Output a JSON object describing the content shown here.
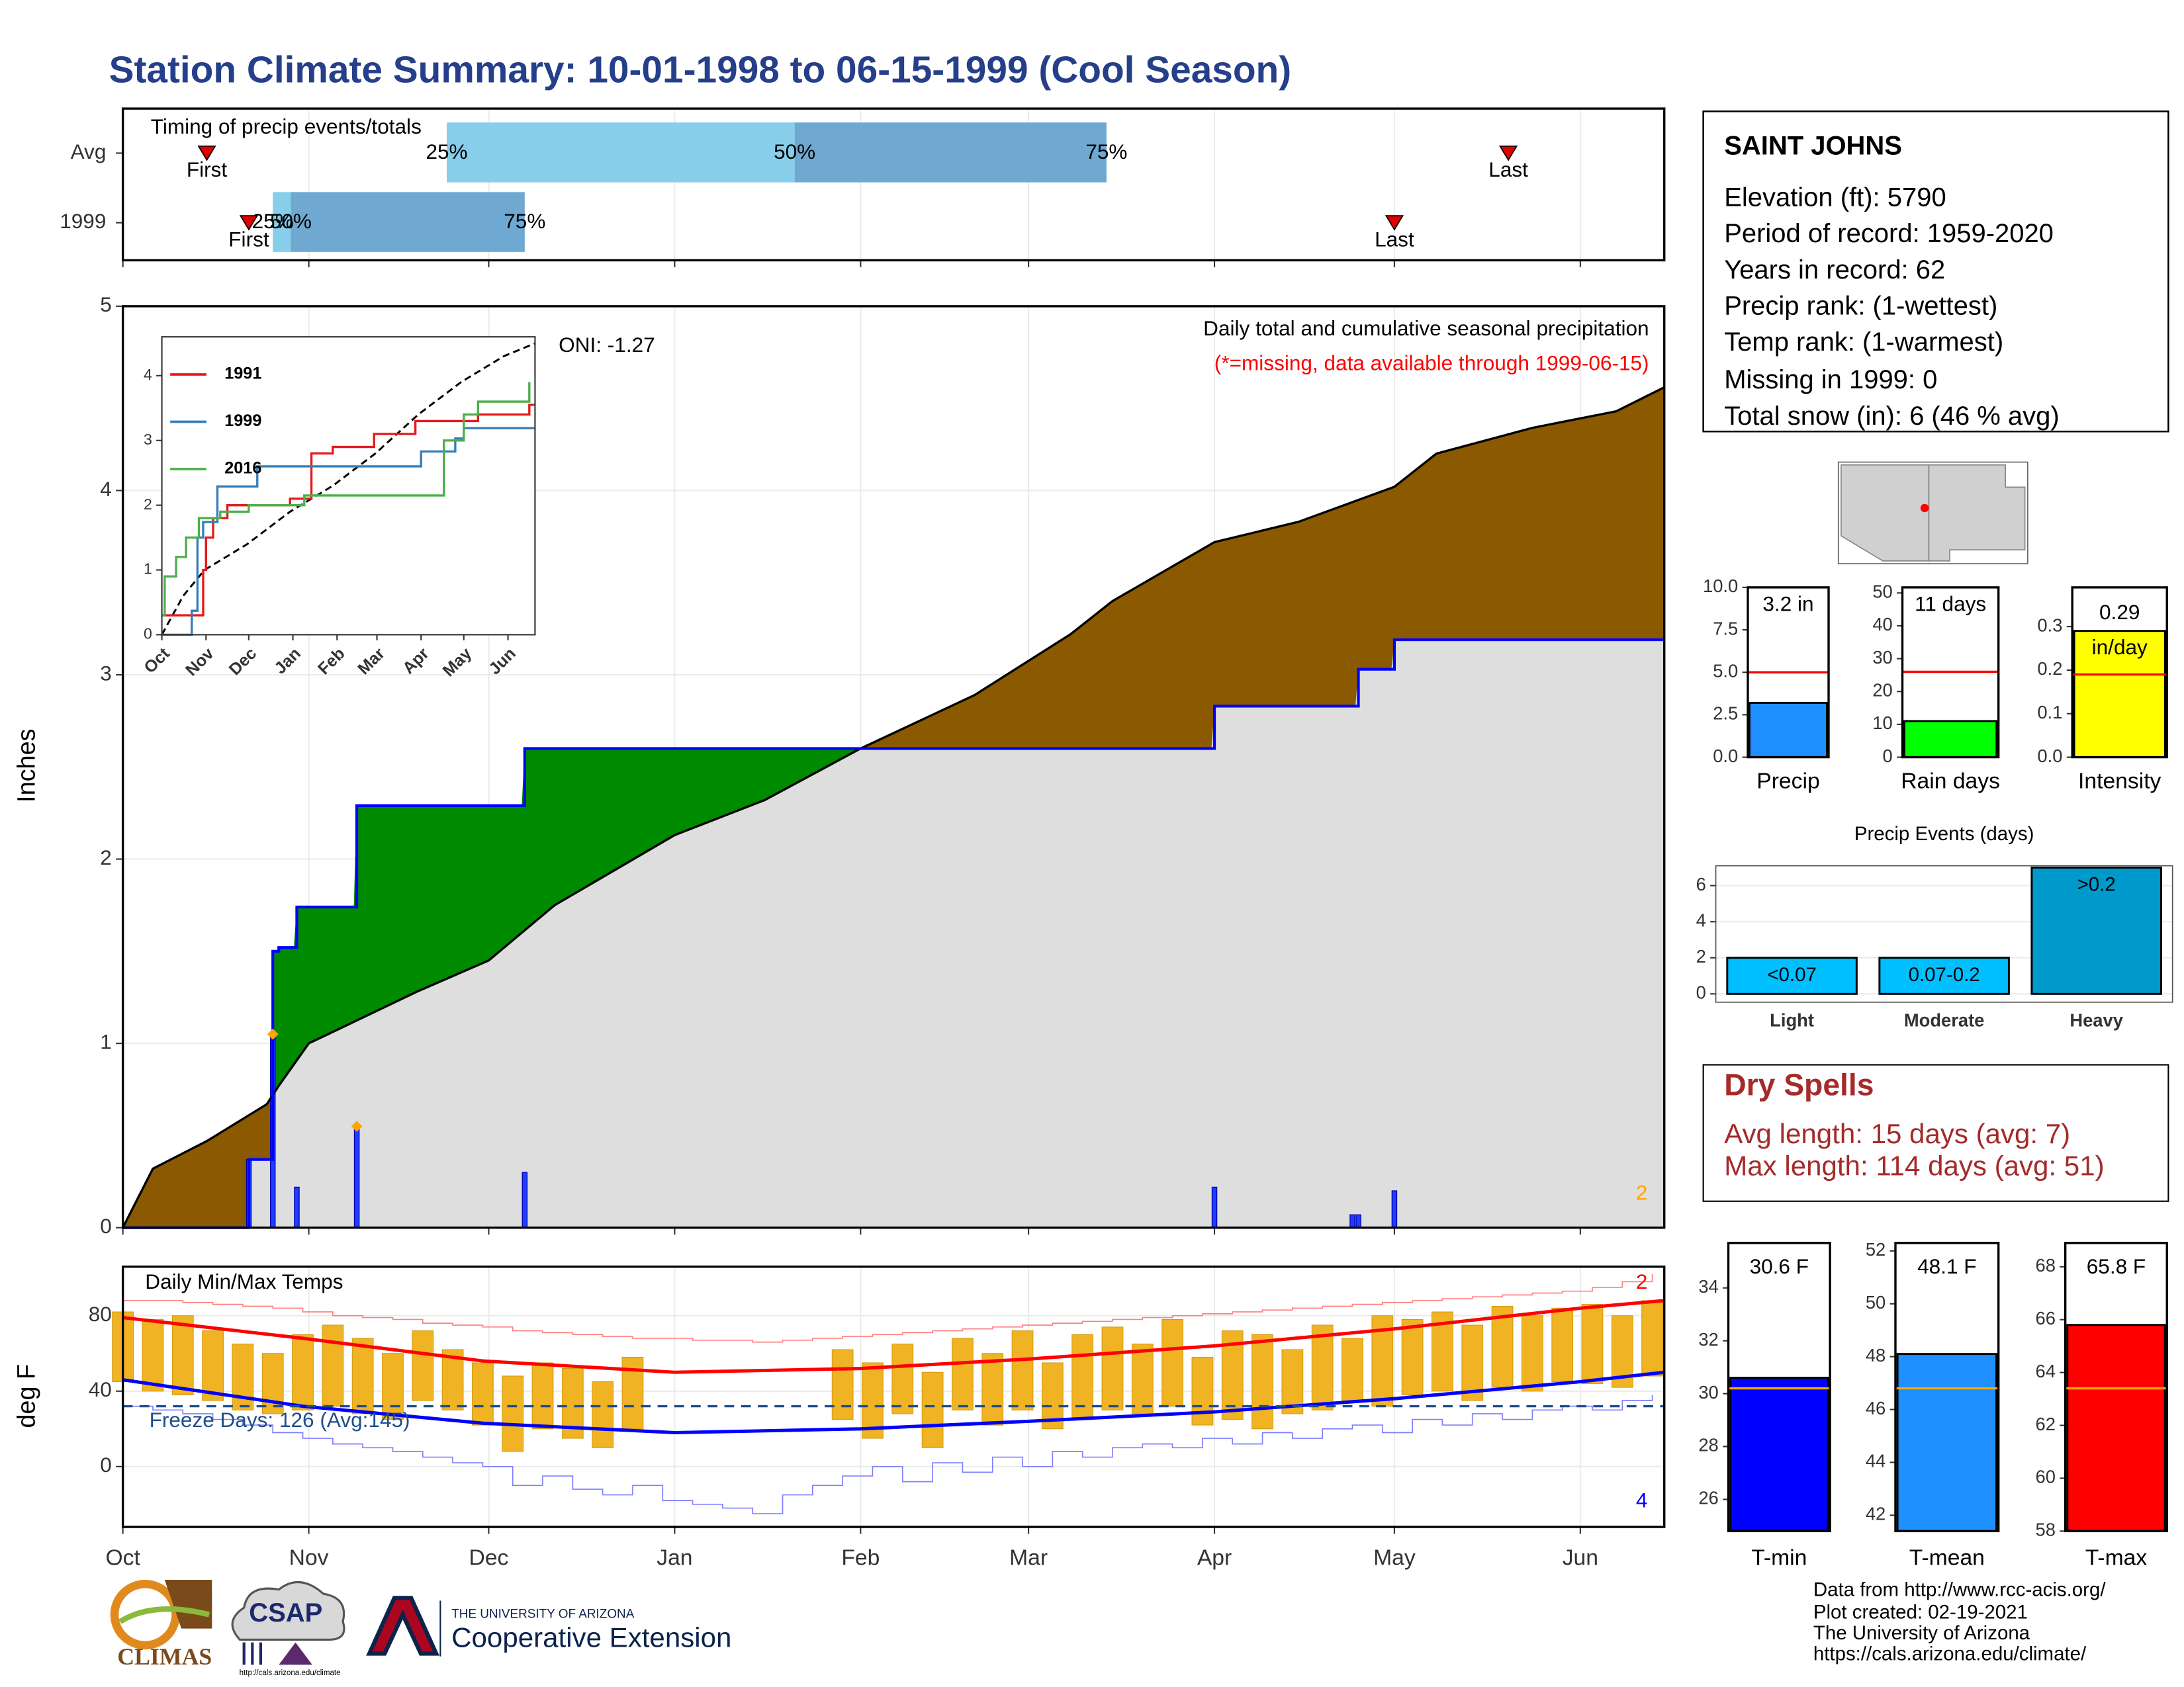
{
  "title": "Station Climate Summary: 10-01-1998 to 06-15-1999 (Cool Season)",
  "station": {
    "name": "SAINT JOHNS",
    "lines": [
      "Elevation (ft): 5790",
      "Period of record: 1959-2020",
      "Years in record: 62",
      "Precip rank:  (1-wettest)",
      "Temp rank:  (1-warmest)",
      "Missing in 1999: 0",
      "Total snow (in): 6 (46 % avg)"
    ]
  },
  "dry_spells": {
    "title": "Dry Spells",
    "lines": [
      "Avg length: 15 days (avg: 7)",
      "Max length: 114 days (avg: 51)"
    ]
  },
  "footer": [
    "Data from http://www.rcc-acis.org/",
    "Plot created: 02-19-2021",
    "The University of Arizona",
    "https://cals.arizona.edu/climate/"
  ],
  "logos": {
    "climas": "CLIMAS",
    "csap": "CSAP",
    "csap_url": "http://cals.arizona.edu/climate",
    "university": "THE UNIVERSITY OF ARIZONA",
    "extension": "Cooperative Extension"
  },
  "chart_data": [
    {
      "type": "timeline",
      "title": "Timing of precip events/totals",
      "categories": [
        "Avg",
        "1999"
      ],
      "first": [
        14,
        21
      ],
      "p25": [
        54,
        25
      ],
      "p50": [
        112,
        28
      ],
      "p75": [
        164,
        67
      ],
      "last": [
        231,
        212
      ],
      "first_label": "First",
      "last_label": "Last",
      "percentile_labels": [
        "25%",
        "50%",
        "75%"
      ],
      "colors": [
        "#87ceeb",
        "#6fa8d0"
      ],
      "marker_color": "#e00000",
      "xlim": [
        0,
        257
      ],
      "xticks": [
        0,
        31,
        61,
        92,
        123,
        151,
        182,
        212,
        243
      ],
      "grid": true
    },
    {
      "type": "area",
      "y_label": "Inches",
      "oni": "ONI: -1.27",
      "subtitle": "Daily total and cumulative seasonal precipitation",
      "note": "(*=missing, data available through 1999-06-15)",
      "corner_label": "2",
      "ylim": [
        0,
        5
      ],
      "yticks": [
        0,
        1,
        2,
        3,
        4,
        5
      ],
      "xlim": [
        0,
        257
      ],
      "xticks": [
        0,
        31,
        61,
        92,
        123,
        151,
        182,
        212,
        243
      ],
      "grid": true,
      "above_color": "#008a00",
      "below_color": "#8b5a00",
      "base_color": "#dedede",
      "average": {
        "color": "#000000",
        "x": [
          0,
          5,
          14,
          24,
          26,
          31,
          49,
          61,
          72,
          92,
          107,
          123,
          142,
          158,
          165,
          182,
          196,
          212,
          219,
          235,
          249,
          257
        ],
        "values": [
          0,
          0.32,
          0.47,
          0.67,
          0.77,
          1.0,
          1.28,
          1.45,
          1.75,
          2.13,
          2.32,
          2.6,
          2.89,
          3.22,
          3.4,
          3.72,
          3.83,
          4.02,
          4.2,
          4.34,
          4.43,
          4.56
        ]
      },
      "current": {
        "color": "#0000ff",
        "x": [
          0,
          21,
          25,
          26,
          29,
          39,
          67,
          182,
          206,
          212,
          257
        ],
        "values": [
          0,
          0.37,
          1.5,
          1.52,
          1.74,
          2.29,
          2.6,
          2.83,
          3.03,
          3.19,
          3.19
        ]
      },
      "daily": {
        "color": "#1f3cff",
        "x": [
          21,
          25,
          29,
          39,
          67,
          182,
          205,
          206,
          212
        ],
        "values": [
          0.37,
          1.05,
          0.22,
          0.55,
          0.3,
          0.22,
          0.07,
          0.07,
          0.2
        ]
      },
      "markers": {
        "color": "#ffa500",
        "x": [
          25,
          39
        ],
        "values": [
          1.05,
          0.55
        ]
      }
    },
    {
      "type": "line",
      "xlim": [
        0,
        262
      ],
      "xticks": [
        {
          "value": 0,
          "label": "Oct"
        },
        {
          "value": 31,
          "label": "Nov"
        },
        {
          "value": 61,
          "label": "Dec"
        },
        {
          "value": 92,
          "label": "Jan"
        },
        {
          "value": 123,
          "label": "Feb"
        },
        {
          "value": 151,
          "label": "Mar"
        },
        {
          "value": 182,
          "label": "Apr"
        },
        {
          "value": 212,
          "label": "May"
        },
        {
          "value": 243,
          "label": "Jun"
        }
      ],
      "ylim": [
        0,
        4.6
      ],
      "yticks": [
        0,
        1,
        2,
        3,
        4
      ],
      "series": [
        {
          "name": "1991",
          "color": "#e41a1c",
          "x": [
            0,
            22,
            29,
            31,
            36,
            46,
            90,
            105,
            120,
            149,
            178,
            222,
            258,
            262
          ],
          "values": [
            0.3,
            0.3,
            1.0,
            1.5,
            1.8,
            2.0,
            2.1,
            2.8,
            2.9,
            3.1,
            3.3,
            3.4,
            3.55,
            3.55
          ]
        },
        {
          "name": "1999",
          "color": "#377eb8",
          "x": [
            0,
            21,
            25,
            29,
            39,
            67,
            182,
            206,
            212,
            262
          ],
          "values": [
            0,
            0.37,
            1.5,
            1.74,
            2.29,
            2.6,
            2.83,
            3.03,
            3.19,
            3.19
          ]
        },
        {
          "name": "2016",
          "color": "#4daf4a",
          "x": [
            0,
            2,
            10,
            17,
            26,
            41,
            61,
            100,
            178,
            198,
            212,
            222,
            258
          ],
          "values": [
            0.3,
            0.9,
            1.2,
            1.5,
            1.8,
            1.9,
            2.0,
            2.15,
            2.15,
            3.0,
            3.4,
            3.6,
            3.9
          ]
        }
      ],
      "average": {
        "color": "#000000",
        "x": [
          0,
          15,
          30,
          60,
          90,
          120,
          150,
          180,
          210,
          240,
          262
        ],
        "values": [
          0,
          0.6,
          1.0,
          1.4,
          1.9,
          2.3,
          2.8,
          3.4,
          3.9,
          4.3,
          4.5
        ]
      }
    },
    {
      "type": "range",
      "title": "Daily Min/Max Temps",
      "y_label": "deg F",
      "freeze_line": 32,
      "freeze_label": "Freeze Days: 126 (Avg:145)",
      "corner_top": "2",
      "corner_bottom": "4",
      "ylim": [
        -32,
        106
      ],
      "yticks": [
        0,
        40,
        80
      ],
      "xlim": [
        0,
        257
      ],
      "grid": true,
      "xticks": [
        {
          "value": 0,
          "label": "Oct"
        },
        {
          "value": 31,
          "label": "Nov"
        },
        {
          "value": 61,
          "label": "Dec"
        },
        {
          "value": 92,
          "label": "Jan"
        },
        {
          "value": 123,
          "label": "Feb"
        },
        {
          "value": 151,
          "label": "Mar"
        },
        {
          "value": 182,
          "label": "Apr"
        },
        {
          "value": 212,
          "label": "May"
        },
        {
          "value": 243,
          "label": "Jun"
        }
      ],
      "bar_color": "#f0b323",
      "x": [
        0,
        5,
        10,
        15,
        20,
        25,
        30,
        35,
        40,
        45,
        50,
        55,
        60,
        65,
        70,
        75,
        80,
        85,
        90,
        95,
        100,
        105,
        110,
        115,
        120,
        125,
        130,
        135,
        140,
        145,
        150,
        155,
        160,
        165,
        170,
        175,
        180,
        185,
        190,
        195,
        200,
        205,
        210,
        215,
        220,
        225,
        230,
        235,
        240,
        245,
        250,
        255
      ],
      "max": [
        82,
        78,
        80,
        72,
        65,
        60,
        70,
        75,
        68,
        60,
        72,
        62,
        55,
        48,
        55,
        52,
        45,
        58,
        null,
        null,
        null,
        null,
        null,
        null,
        62,
        55,
        65,
        50,
        68,
        60,
        72,
        55,
        70,
        74,
        65,
        78,
        58,
        72,
        70,
        62,
        75,
        68,
        80,
        78,
        82,
        75,
        85,
        80,
        84,
        86,
        80,
        88
      ],
      "min": [
        45,
        40,
        38,
        35,
        30,
        28,
        30,
        32,
        28,
        25,
        35,
        30,
        22,
        8,
        20,
        15,
        10,
        20,
        null,
        null,
        null,
        null,
        null,
        null,
        25,
        15,
        28,
        10,
        30,
        22,
        30,
        20,
        25,
        30,
        28,
        32,
        22,
        25,
        20,
        28,
        30,
        35,
        32,
        38,
        40,
        35,
        42,
        40,
        45,
        44,
        42,
        48
      ],
      "record_high": {
        "color": "#ff8080",
        "values": [
          88,
          88,
          87,
          86,
          85,
          84,
          82,
          80,
          79,
          78,
          76,
          75,
          74,
          72,
          71,
          70,
          69,
          68,
          68,
          67,
          67,
          66,
          67,
          68,
          69,
          70,
          71,
          72,
          73,
          74,
          75,
          76,
          77,
          78,
          79,
          80,
          81,
          82,
          83,
          84,
          85,
          86,
          87,
          88,
          89,
          90,
          91,
          92,
          93,
          95,
          98,
          102
        ]
      },
      "record_low": {
        "color": "#8080ff",
        "values": [
          32,
          30,
          28,
          25,
          22,
          18,
          15,
          12,
          10,
          8,
          5,
          2,
          0,
          -10,
          -5,
          -12,
          -15,
          -10,
          -18,
          -20,
          -22,
          -25,
          -15,
          -10,
          -5,
          0,
          -8,
          2,
          -3,
          5,
          0,
          8,
          5,
          10,
          12,
          10,
          15,
          12,
          18,
          15,
          20,
          22,
          18,
          25,
          22,
          28,
          25,
          30,
          32,
          30,
          35,
          38
        ]
      },
      "normal_max": {
        "color": "#ff0000",
        "x": [
          0,
          30,
          60,
          92,
          123,
          151,
          182,
          212,
          243,
          257
        ],
        "values": [
          79,
          68,
          56,
          50,
          52,
          57,
          64,
          73,
          84,
          88
        ]
      },
      "normal_min": {
        "color": "#0000ff",
        "x": [
          0,
          30,
          60,
          92,
          123,
          151,
          182,
          212,
          243,
          257
        ],
        "values": [
          46,
          32,
          23,
          18,
          20,
          24,
          29,
          36,
          45,
          50
        ]
      }
    },
    {
      "type": "bar",
      "categories": [
        "Precip"
      ],
      "values": [
        3.2
      ],
      "value_labels": [
        "3.2 in"
      ],
      "average": 5.0,
      "average_color": "#ff0000",
      "color": "#1e90ff",
      "ylim": [
        0,
        10
      ],
      "yticks": [
        {
          "value": 0,
          "label": "0.0"
        },
        2.5,
        {
          "value": 5,
          "label": "5.0"
        },
        7.5,
        {
          "value": 10,
          "label": "10.0"
        }
      ]
    },
    {
      "type": "bar",
      "categories": [
        "Rain days"
      ],
      "values": [
        11
      ],
      "value_labels": [
        "11 days"
      ],
      "average": 26,
      "average_color": "#ff0000",
      "color": "#00ff00",
      "ylim": [
        0,
        51.7
      ],
      "yticks": [
        0,
        10,
        20,
        30,
        40,
        50
      ]
    },
    {
      "type": "bar",
      "categories": [
        "Intensity"
      ],
      "values": [
        0.29
      ],
      "value_labels": [
        "0.29"
      ],
      "unit": "in/day",
      "average": 0.19,
      "average_color": "#ff0000",
      "color": "#ffff00",
      "ylim": [
        0,
        0.39
      ],
      "yticks": [
        {
          "value": 0,
          "label": "0.0"
        },
        0.1,
        0.2,
        0.3
      ]
    },
    {
      "type": "bar",
      "title": "Precip Events (days)",
      "categories": [
        "Light",
        "Moderate",
        "Heavy"
      ],
      "values": [
        2,
        2,
        7
      ],
      "bar_labels": [
        "<0.07",
        "0.07-0.2",
        ">0.2"
      ],
      "colors": [
        "#00bfff",
        "#00bfff",
        "#0099cc"
      ],
      "ylim": [
        -0.46,
        7.1
      ],
      "yticks": [
        0,
        2,
        4,
        6
      ],
      "grid": true
    },
    {
      "type": "bar",
      "categories": [
        "T-min"
      ],
      "values": [
        30.6
      ],
      "value_labels": [
        "30.6 F"
      ],
      "average": 30.2,
      "average_color": "#ffa500",
      "color": "#0000ff",
      "ylim": [
        24.8,
        35.7
      ],
      "yticks": [
        26,
        28,
        30,
        32,
        34
      ]
    },
    {
      "type": "bar",
      "categories": [
        "T-mean"
      ],
      "values": [
        48.1
      ],
      "value_labels": [
        "48.1 F"
      ],
      "average": 46.8,
      "average_color": "#ffa500",
      "color": "#1e90ff",
      "ylim": [
        41.4,
        52.3
      ],
      "yticks": [
        42,
        44,
        46,
        48,
        50,
        52
      ]
    },
    {
      "type": "bar",
      "categories": [
        "T-max"
      ],
      "values": [
        65.8
      ],
      "value_labels": [
        "65.8 F"
      ],
      "average": 63.4,
      "average_color": "#ffa500",
      "color": "#ff0000",
      "ylim": [
        58,
        68.9
      ],
      "yticks": [
        58,
        60,
        62,
        64,
        66,
        68
      ]
    }
  ]
}
